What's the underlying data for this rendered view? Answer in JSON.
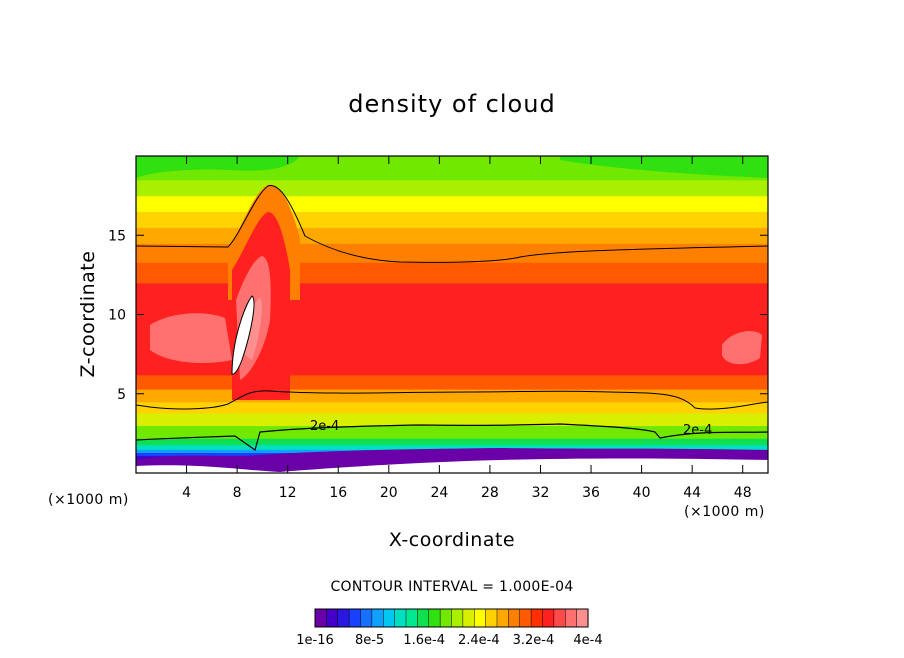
{
  "chart_data": {
    "type": "heatmap",
    "title": "density of cloud",
    "xlabel": "X-coordinate",
    "ylabel": "Z-coordinate",
    "x_unit": "(×1000 m)",
    "y_unit": "(×1000 m)",
    "xlim": [
      0,
      50
    ],
    "ylim": [
      0,
      20
    ],
    "x_ticks": [
      "4",
      "8",
      "12",
      "16",
      "20",
      "24",
      "28",
      "32",
      "36",
      "40",
      "44",
      "48"
    ],
    "y_ticks": [
      "5",
      "10",
      "15"
    ],
    "contour_interval_text": "CONTOUR INTERVAL = 1.000E-04",
    "contour_labels": [
      "2e-4",
      "2e-4"
    ],
    "colorbar": {
      "min": 1e-16,
      "max": 0.0004,
      "tick_labels": [
        "1e-16",
        "8e-5",
        "1.6e-4",
        "2.4e-4",
        "3.2e-4",
        "4e-4"
      ],
      "colors": [
        "#6a00a8",
        "#4400c8",
        "#2a18e0",
        "#1a40ff",
        "#1870ff",
        "#10a0ff",
        "#00c8f0",
        "#00e0c0",
        "#00e890",
        "#10e050",
        "#30e010",
        "#70e800",
        "#a8f000",
        "#d8f000",
        "#ffff00",
        "#ffd200",
        "#ffa800",
        "#ff8000",
        "#ff5a00",
        "#ff3000",
        "#ff2020",
        "#ff4a4a",
        "#ff7070",
        "#ff9090"
      ]
    },
    "layers": [
      {
        "z": [
          0.0,
          0.9
        ],
        "color": "#6a00a8"
      },
      {
        "z": [
          0.9,
          1.1
        ],
        "color": "#4400c8"
      },
      {
        "z": [
          1.1,
          1.3
        ],
        "color": "#1a40ff"
      },
      {
        "z": [
          1.3,
          1.5
        ],
        "color": "#10a0ff"
      },
      {
        "z": [
          1.5,
          1.8
        ],
        "color": "#00e0c0"
      },
      {
        "z": [
          1.8,
          2.2
        ],
        "color": "#10e050"
      },
      {
        "z": [
          2.2,
          3.0
        ],
        "color": "#70e800"
      },
      {
        "z": [
          3.0,
          3.8
        ],
        "color": "#d8f000"
      },
      {
        "z": [
          3.8,
          4.5
        ],
        "color": "#ffd200"
      },
      {
        "z": [
          4.5,
          5.3
        ],
        "color": "#ffa800"
      },
      {
        "z": [
          5.3,
          6.2
        ],
        "color": "#ff5a00"
      },
      {
        "z": [
          6.2,
          12.0
        ],
        "color": "#ff2020"
      },
      {
        "z": [
          12.0,
          13.3
        ],
        "color": "#ff5a00"
      },
      {
        "z": [
          13.3,
          14.5
        ],
        "color": "#ff8000"
      },
      {
        "z": [
          14.5,
          15.5
        ],
        "color": "#ffa800"
      },
      {
        "z": [
          15.5,
          16.5
        ],
        "color": "#ffd200"
      },
      {
        "z": [
          16.5,
          17.5
        ],
        "color": "#ffff00"
      },
      {
        "z": [
          17.5,
          18.5
        ],
        "color": "#a8f000"
      },
      {
        "z": [
          18.5,
          20.0
        ],
        "color": "#70e800"
      }
    ]
  }
}
